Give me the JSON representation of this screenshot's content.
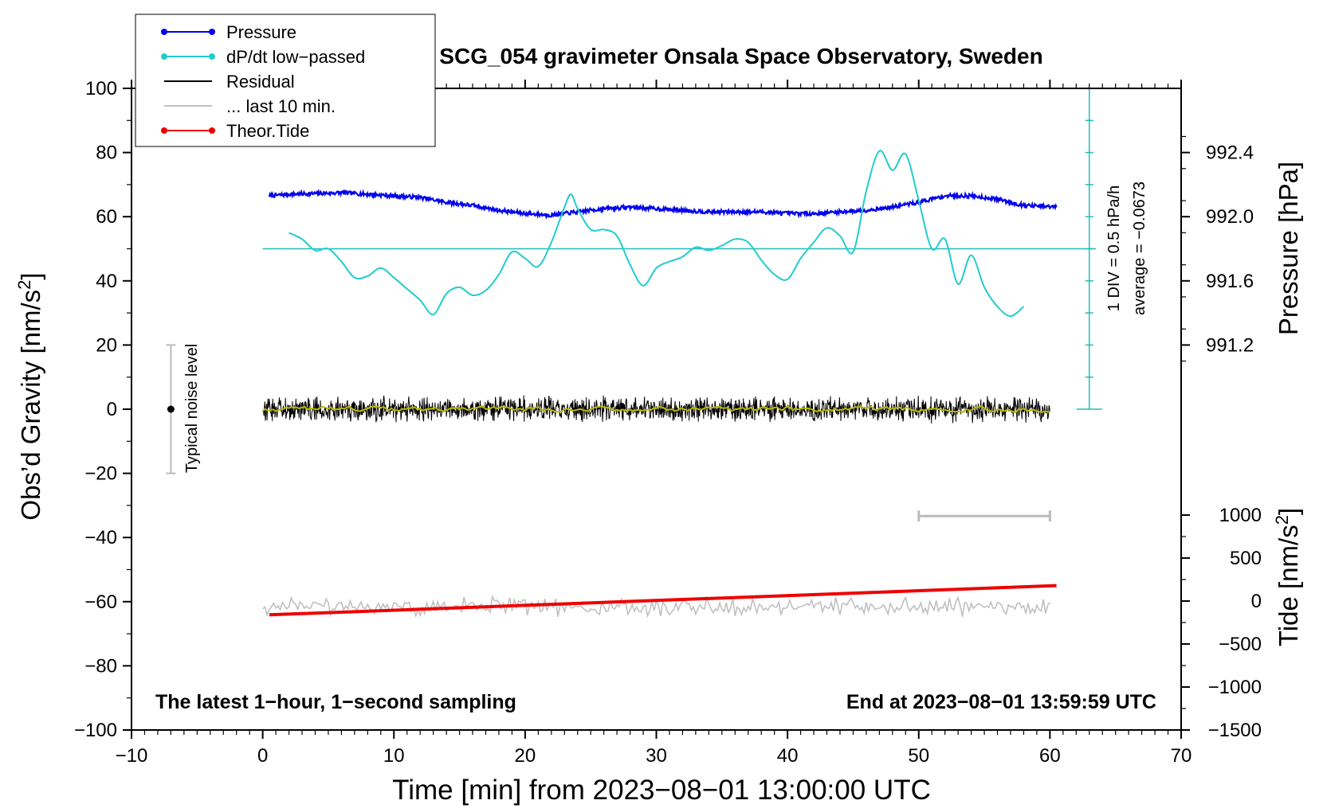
{
  "chart_data": {
    "type": "line",
    "title": "SCG_054 gravimeter Onsala Space Observatory, Sweden",
    "xlabel": "Time [min] from 2023−08−01 13:00:00 UTC",
    "ylabel_left": "Obs’d Gravity [nm/s²]",
    "ylabel_left_base": "Obs’d Gravity [nm/s",
    "ylabel_left_sup": "2",
    "ylabel_left_tail": "]",
    "ylabel_right_pressure": "Pressure [hPa]",
    "ylabel_right_tide": "Tide [nm/s²]",
    "ylabel_right_tide_base": "Tide [nm/s",
    "ylabel_right_tide_sup": "2",
    "ylabel_right_tide_tail": "]",
    "xlim": [
      -10,
      70
    ],
    "ylim": [
      -100,
      100
    ],
    "xticks": [
      -10,
      0,
      10,
      20,
      30,
      40,
      50,
      60,
      70
    ],
    "xtick_labels": [
      "−10",
      "0",
      "10",
      "20",
      "30",
      "40",
      "50",
      "60",
      "70"
    ],
    "yticks": [
      -100,
      -80,
      -60,
      -40,
      -20,
      0,
      20,
      40,
      60,
      80,
      100
    ],
    "ytick_labels": [
      "−100",
      "−80",
      "−60",
      "−40",
      "−20",
      "0",
      "20",
      "40",
      "60",
      "80",
      "100"
    ],
    "pressure_axis": {
      "ticks": [
        991.2,
        991.6,
        992.0,
        992.4
      ],
      "tick_labels": [
        "991.2",
        "991.6",
        "992.0",
        "992.4"
      ],
      "ref_value": 991.8,
      "ref_gravity": 50
    },
    "tide_axis": {
      "ticks": [
        -1500,
        -1000,
        -500,
        0,
        500,
        1000
      ],
      "tick_labels": [
        "−1500",
        "−1000",
        "−500",
        "0",
        "500",
        "1000"
      ],
      "range_tide": [
        -1500,
        1000
      ],
      "range_gravity": [
        -100,
        -33
      ]
    },
    "dpdt_scale": {
      "label": "1 DIV = 0.5 hPa/h",
      "average_label": "average = −0.0673",
      "x": 63,
      "y_range": [
        0,
        100
      ],
      "divisions": 10
    },
    "noise_bar": {
      "x": -7,
      "center": 0,
      "range": [
        -20,
        20
      ],
      "label": "Typical noise level"
    },
    "last10_bar": {
      "x_range": [
        50,
        60
      ],
      "y": -33.3
    },
    "annotations": {
      "left_bottom": "The latest 1−hour, 1−second sampling",
      "right_bottom": "End at 2023−08−01 13:59:59 UTC"
    },
    "legend": [
      {
        "label": "Pressure",
        "color": "#0000ee",
        "marker": true
      },
      {
        "label": "dP/dt low−passed",
        "color": "#22cccc",
        "marker": true
      },
      {
        "label": "Residual",
        "color": "#000000",
        "marker": false
      },
      {
        "label": "... last 10 min.",
        "color": "#c0c0c0",
        "marker": false
      },
      {
        "label": "Theor.Tide",
        "color": "#ee0000",
        "marker": true
      }
    ],
    "series": [
      {
        "name": "Pressure",
        "color": "#0000ee",
        "axis": "gravity",
        "x": [
          0.5,
          2,
          4,
          6,
          8,
          10,
          12,
          14,
          16,
          18,
          20,
          22,
          24,
          26,
          28,
          30,
          32,
          34,
          36,
          38,
          40,
          42,
          44,
          46,
          48,
          50,
          52,
          54,
          56,
          58,
          60.5
        ],
        "values": [
          66.5,
          67,
          67.2,
          67.5,
          67,
          66.5,
          66,
          64.5,
          63.5,
          62,
          61,
          60.5,
          61.5,
          62.5,
          63,
          62.5,
          62,
          61.5,
          61.5,
          61.5,
          61,
          61,
          61.5,
          62,
          63,
          64.5,
          66.5,
          66.5,
          65.5,
          63.5,
          63
        ]
      },
      {
        "name": "dP/dt low-passed",
        "color": "#22cccc",
        "axis": "gravity",
        "x": [
          2,
          3,
          4,
          5,
          6,
          7,
          8,
          9,
          10,
          11,
          12,
          13,
          14,
          15,
          16,
          17,
          18,
          19,
          20,
          21,
          22,
          23,
          23.5,
          24,
          25,
          26,
          27,
          28,
          29,
          30,
          31,
          32,
          33,
          34,
          35,
          36,
          37,
          38,
          39,
          40,
          41,
          42,
          43,
          44,
          45,
          46,
          47,
          48,
          49,
          50,
          51,
          52,
          53,
          54,
          55,
          56,
          57,
          58
        ],
        "values": [
          55,
          53,
          49.5,
          50,
          46,
          41,
          41.5,
          44,
          41,
          37.5,
          34,
          29.5,
          36,
          38,
          35.5,
          37,
          42,
          49,
          47,
          44.5,
          52,
          63,
          67,
          62.5,
          56,
          56,
          54,
          45,
          38.5,
          44,
          46,
          47.5,
          50.5,
          49.5,
          51,
          53,
          52,
          46.5,
          42,
          40.5,
          47,
          52,
          56.5,
          54,
          49,
          68,
          80.5,
          74.5,
          79.5,
          65,
          50,
          53,
          39,
          48,
          38,
          32,
          29,
          32
        ]
      },
      {
        "name": "Residual",
        "color": "#000000",
        "axis": "gravity",
        "x_range": [
          0,
          60
        ],
        "mean": 0,
        "amplitude": 3
      },
      {
        "name": "... last 10 min.",
        "color": "#c0c0c0",
        "axis": "gravity",
        "x_range": [
          0,
          60
        ],
        "mean": -61.5,
        "amplitude": 2.5
      },
      {
        "name": "Theor.Tide",
        "color": "#ee0000",
        "axis": "tide",
        "x": [
          0.5,
          60.5
        ],
        "values": [
          -160,
          180
        ]
      }
    ],
    "colors": {
      "axes": "#000000",
      "noise_bar": "#bbbbbb",
      "dpdt_scale": "#22bbbb",
      "smoothed_residual": "#b8b800"
    }
  }
}
